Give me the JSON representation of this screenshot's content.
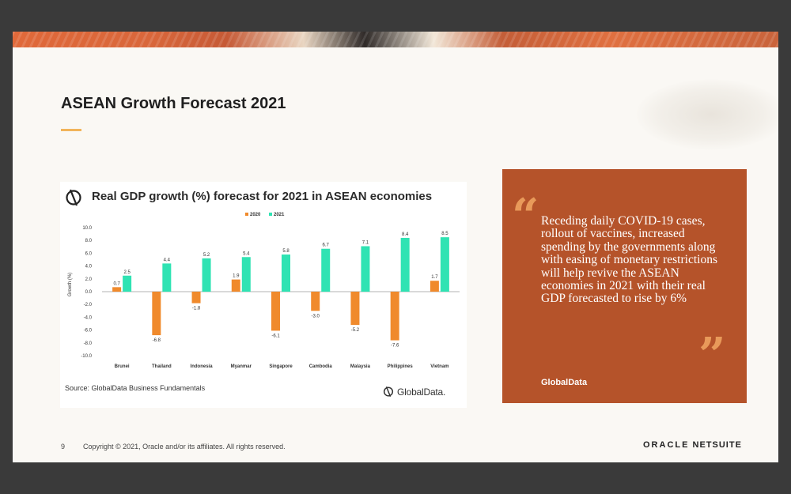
{
  "slide": {
    "title": "ASEAN Growth Forecast 2021",
    "page_number": "9",
    "copyright": "Copyright © 2021, Oracle and/or its affiliates. All rights reserved.",
    "brand_primary": "ORACLE",
    "brand_secondary": "NETSUITE",
    "accent_color": "#f2b45a"
  },
  "chart_card": {
    "source": "Source: GlobalData Business Fundamentals",
    "brand": "GlobalData."
  },
  "quote": {
    "open_mark": "“",
    "close_mark": "”",
    "text": "Receding daily COVID-19 cases, rollout of vaccines, increased spending by the governments along with easing of monetary restrictions will help revive the ASEAN economies in 2021 with their real GDP forecasted to rise by 6%",
    "source": "GlobalData",
    "background_color": "#b5532a"
  },
  "chart_data": {
    "type": "bar",
    "title": "Real GDP growth (%) forecast for 2021 in ASEAN economies",
    "ylabel": "Growth (%)",
    "xlabel": "",
    "ylim": [
      -10,
      10
    ],
    "ytick_labels": [
      "10.0",
      "8.0",
      "6.0",
      "4.0",
      "2.0",
      "0.0",
      "-2.0",
      "-4.0",
      "-6.0",
      "-8.0",
      "-10.0"
    ],
    "grid": false,
    "legend_position": "top-center",
    "categories": [
      "Brunei",
      "Thailand",
      "Indonesia",
      "Myanmar",
      "Singapore",
      "Cambodia",
      "Malaysia",
      "Philippines",
      "Vietnam"
    ],
    "series": [
      {
        "name": "2020",
        "color": "#f08a2c",
        "values": [
          0.7,
          -6.8,
          -1.8,
          1.9,
          -6.1,
          -3.0,
          -5.2,
          -7.6,
          1.7
        ],
        "labels": [
          "0.7",
          "-6.8",
          "-1.8",
          "1.9",
          "-6.1",
          "-3.0",
          "-5.2",
          "-7.6",
          "1.7"
        ]
      },
      {
        "name": "2021",
        "color": "#2fe3b3",
        "values": [
          2.5,
          4.4,
          5.2,
          5.4,
          5.8,
          6.7,
          7.1,
          8.4,
          8.5
        ],
        "labels": [
          "2.5",
          "4.4",
          "5.2",
          "5.4",
          "5.8",
          "6.7",
          "7.1",
          "8.4",
          "8.5"
        ]
      }
    ]
  }
}
